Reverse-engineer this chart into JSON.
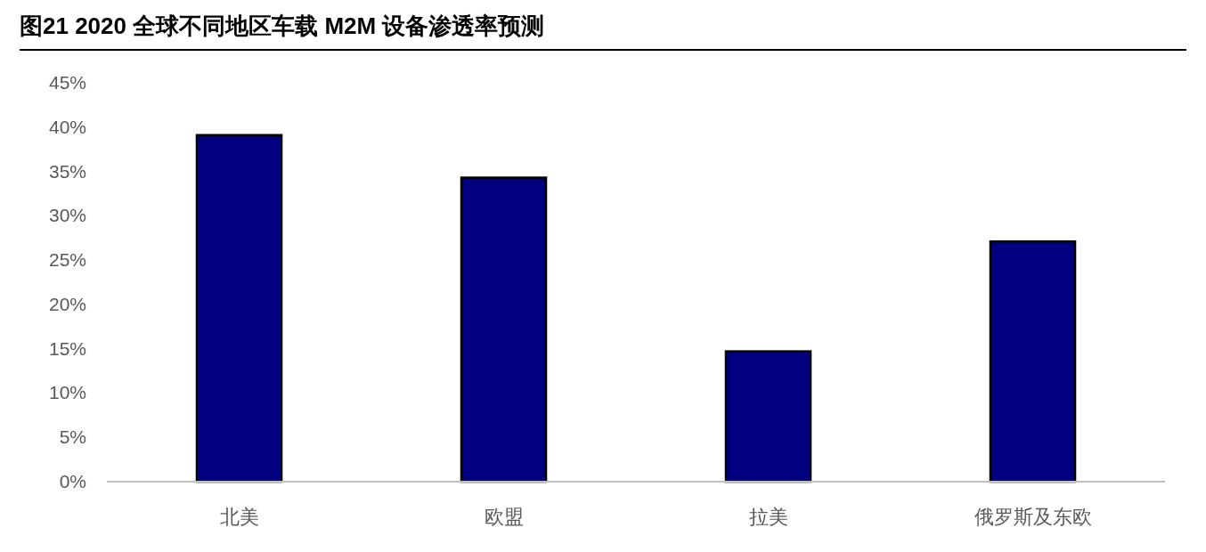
{
  "chart_data": {
    "type": "bar",
    "title": "图21 2020 全球不同地区车载 M2M 设备渗透率预测",
    "categories": [
      "北美",
      "欧盟",
      "拉美",
      "俄罗斯及东欧"
    ],
    "values": [
      39.1,
      34.3,
      14.7,
      27.1
    ],
    "color": "#000080",
    "ylim": [
      0,
      45
    ],
    "yticks": [
      {
        "value": 0,
        "label": "0%"
      },
      {
        "value": 5,
        "label": "5%"
      },
      {
        "value": 10,
        "label": "10%"
      },
      {
        "value": 15,
        "label": "15%"
      },
      {
        "value": 20,
        "label": "20%"
      },
      {
        "value": 25,
        "label": "25%"
      },
      {
        "value": 30,
        "label": "30%"
      },
      {
        "value": 35,
        "label": "35%"
      },
      {
        "value": 40,
        "label": "40%"
      },
      {
        "value": 45,
        "label": "45%"
      }
    ]
  }
}
